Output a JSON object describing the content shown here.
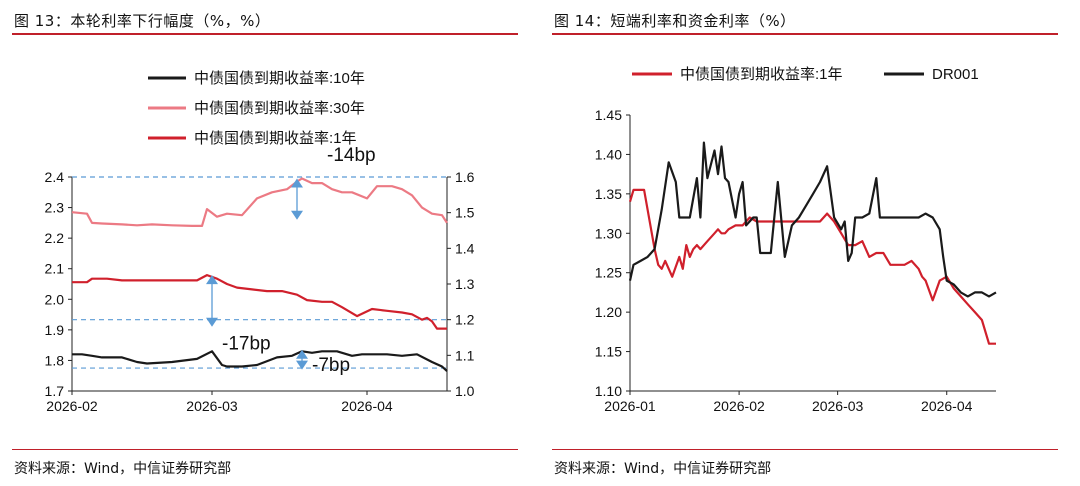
{
  "left": {
    "title": "图 13：本轮利率下行幅度（%，%）",
    "source": "资料来源：Wind，中信证券研究部"
  },
  "right": {
    "title": "图 14：短端利率和资金利率（%）",
    "source": "资料来源：Wind，中信证券研究部"
  },
  "colors": {
    "rule": "#c0202a",
    "black": "#1a1a1a",
    "pink": "#ec7a84",
    "red": "#d0202c",
    "annot_blue": "#5b9bd5"
  },
  "chart_data": [
    {
      "type": "line",
      "title": "本轮利率下行幅度（%，%）",
      "legend": [
        "中债国债到期收益率:10年",
        "中债国债到期收益率:30年",
        "中债国债到期收益率:1年"
      ],
      "legend_position": "top",
      "x_ticks": [
        "2026-02",
        "2026-03",
        "2026-04"
      ],
      "x_range": [
        0,
        75
      ],
      "x_tick_positions": [
        0,
        28,
        59
      ],
      "y_left_range": [
        1.7,
        2.4
      ],
      "y_left_ticks": [
        "1.7",
        "1.8",
        "1.9",
        "2.0",
        "2.1",
        "2.2",
        "2.3",
        "2.4"
      ],
      "y_right_range": [
        1.0,
        1.6
      ],
      "y_right_ticks": [
        "1.0",
        "1.1",
        "1.2",
        "1.3",
        "1.4",
        "1.5",
        "1.6"
      ],
      "series": [
        {
          "name": "中债国债到期收益率:10年",
          "axis": "left",
          "color_key": "black",
          "x": [
            0,
            2,
            4,
            6,
            8,
            10,
            13,
            15,
            20,
            25,
            28,
            30,
            31,
            34,
            37,
            41,
            44,
            46,
            48,
            50,
            53,
            56,
            58,
            60,
            63,
            66,
            69,
            72,
            74,
            75
          ],
          "y": [
            1.82,
            1.82,
            1.815,
            1.81,
            1.81,
            1.81,
            1.795,
            1.79,
            1.795,
            1.805,
            1.83,
            1.785,
            1.78,
            1.78,
            1.785,
            1.81,
            1.815,
            1.83,
            1.825,
            1.83,
            1.83,
            1.815,
            1.82,
            1.82,
            1.82,
            1.815,
            1.82,
            1.795,
            1.78,
            1.765
          ]
        },
        {
          "name": "中债国债到期收益率:30年",
          "axis": "left",
          "color_key": "pink",
          "x": [
            0,
            3,
            4,
            6,
            10,
            13,
            16,
            20,
            24,
            26,
            27,
            29,
            31,
            34,
            37,
            40,
            43,
            45,
            46,
            48,
            50,
            52,
            54,
            56,
            59,
            61,
            64,
            66,
            68,
            70,
            72,
            74,
            75
          ],
          "y": [
            2.285,
            2.28,
            2.25,
            2.248,
            2.245,
            2.242,
            2.245,
            2.242,
            2.24,
            2.24,
            2.295,
            2.27,
            2.28,
            2.275,
            2.33,
            2.35,
            2.36,
            2.385,
            2.395,
            2.38,
            2.38,
            2.36,
            2.35,
            2.35,
            2.33,
            2.37,
            2.37,
            2.36,
            2.34,
            2.3,
            2.28,
            2.275,
            2.25
          ]
        },
        {
          "name": "中债国债到期收益率:1年",
          "axis": "right",
          "color_key": "red",
          "x": [
            0,
            3,
            4,
            7,
            10,
            14,
            18,
            22,
            25,
            27,
            29,
            31,
            33,
            36,
            39,
            42,
            45,
            47,
            50,
            52,
            54,
            57,
            60,
            63,
            66,
            68,
            70,
            71,
            72,
            73,
            75
          ],
          "y": [
            1.305,
            1.305,
            1.315,
            1.315,
            1.31,
            1.31,
            1.31,
            1.31,
            1.31,
            1.325,
            1.315,
            1.3,
            1.29,
            1.285,
            1.28,
            1.28,
            1.27,
            1.255,
            1.25,
            1.25,
            1.235,
            1.21,
            1.23,
            1.225,
            1.22,
            1.215,
            1.2,
            1.205,
            1.195,
            1.175,
            1.175
          ]
        }
      ],
      "annotations": [
        {
          "label": "-14bp",
          "axis": "left",
          "y_top": 2.395,
          "y_bottom": 2.26,
          "x": 45,
          "ref_line_y": 2.4
        },
        {
          "label": "-17bp",
          "axis": "right",
          "y_top": 1.325,
          "y_bottom": 1.18,
          "x": 28,
          "ref_line_y": 1.2
        },
        {
          "label": "-7bp",
          "axis": "left",
          "y_top": 1.835,
          "y_bottom": 1.77,
          "x": 46,
          "ref_line_y": 1.775
        }
      ]
    },
    {
      "type": "line",
      "title": "短端利率和资金利率（%）",
      "legend": [
        "中债国债到期收益率:1年",
        "DR001"
      ],
      "legend_position": "top",
      "x_ticks": [
        "2026-01",
        "2026-02",
        "2026-03",
        "2026-04"
      ],
      "x_range": [
        0,
        104
      ],
      "x_tick_positions": [
        0,
        31,
        59,
        90
      ],
      "y_range": [
        1.1,
        1.45
      ],
      "y_ticks": [
        "1.10",
        "1.15",
        "1.20",
        "1.25",
        "1.30",
        "1.35",
        "1.40",
        "1.45"
      ],
      "series": [
        {
          "name": "中债国债到期收益率:1年",
          "color_key": "red",
          "x": [
            0,
            1,
            3,
            4,
            7,
            8,
            9,
            10,
            11,
            12,
            14,
            15,
            16,
            17,
            18,
            19,
            20,
            22,
            24,
            25,
            26,
            27,
            28,
            30,
            32,
            34,
            36,
            38,
            40,
            42,
            44,
            46,
            48,
            50,
            52,
            54,
            56,
            58,
            60,
            62,
            64,
            66,
            68,
            70,
            72,
            74,
            76,
            78,
            80,
            82,
            83,
            84,
            86,
            88,
            90,
            92,
            94,
            96,
            98,
            100,
            102,
            104
          ],
          "y": [
            1.34,
            1.355,
            1.355,
            1.355,
            1.28,
            1.26,
            1.255,
            1.265,
            1.255,
            1.245,
            1.27,
            1.255,
            1.285,
            1.27,
            1.28,
            1.285,
            1.28,
            1.29,
            1.3,
            1.305,
            1.3,
            1.3,
            1.305,
            1.31,
            1.31,
            1.32,
            1.315,
            1.315,
            1.315,
            1.315,
            1.315,
            1.315,
            1.315,
            1.315,
            1.315,
            1.315,
            1.325,
            1.315,
            1.3,
            1.285,
            1.285,
            1.29,
            1.27,
            1.275,
            1.275,
            1.26,
            1.26,
            1.26,
            1.265,
            1.255,
            1.245,
            1.24,
            1.215,
            1.24,
            1.245,
            1.23,
            1.22,
            1.21,
            1.2,
            1.19,
            1.16,
            1.16
          ]
        },
        {
          "name": "DR001",
          "color_key": "black",
          "x": [
            0,
            1,
            3,
            5,
            7,
            9,
            11,
            13,
            14,
            15,
            17,
            19,
            20,
            21,
            22,
            24,
            25,
            26,
            27,
            28,
            30,
            31,
            32,
            33,
            35,
            36,
            37,
            38,
            39,
            40,
            42,
            44,
            46,
            48,
            50,
            52,
            54,
            56,
            58,
            60,
            61,
            62,
            63,
            64,
            65,
            66,
            68,
            70,
            71,
            72,
            73,
            74,
            76,
            78,
            80,
            82,
            84,
            86,
            88,
            89,
            90,
            92,
            94,
            96,
            98,
            100,
            102,
            104
          ],
          "y": [
            1.24,
            1.26,
            1.265,
            1.27,
            1.28,
            1.33,
            1.39,
            1.365,
            1.32,
            1.32,
            1.32,
            1.37,
            1.32,
            1.415,
            1.37,
            1.405,
            1.375,
            1.41,
            1.37,
            1.365,
            1.32,
            1.35,
            1.365,
            1.31,
            1.32,
            1.32,
            1.275,
            1.275,
            1.275,
            1.275,
            1.365,
            1.27,
            1.31,
            1.32,
            1.335,
            1.35,
            1.365,
            1.385,
            1.32,
            1.305,
            1.315,
            1.265,
            1.275,
            1.32,
            1.32,
            1.32,
            1.325,
            1.37,
            1.32,
            1.32,
            1.32,
            1.32,
            1.32,
            1.32,
            1.32,
            1.32,
            1.325,
            1.32,
            1.305,
            1.27,
            1.24,
            1.235,
            1.225,
            1.22,
            1.225,
            1.225,
            1.22,
            1.225
          ]
        }
      ]
    }
  ]
}
